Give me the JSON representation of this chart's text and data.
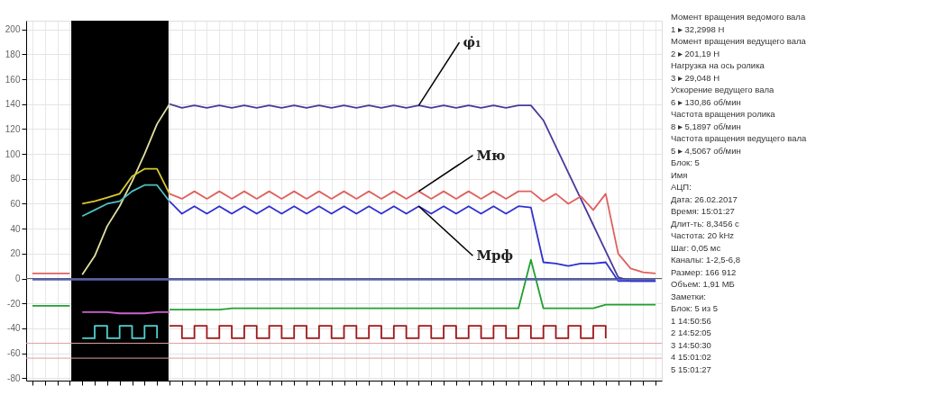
{
  "chart_data": {
    "type": "line",
    "ylim": [
      -82,
      207
    ],
    "yticks": [
      200,
      180,
      160,
      140,
      120,
      100,
      80,
      60,
      40,
      20,
      0,
      -20,
      -40,
      -60,
      -80
    ],
    "categories": [
      null,
      null,
      null,
      null,
      null,
      null,
      null,
      null,
      null,
      null,
      null,
      null,
      null,
      null,
      null,
      null,
      null,
      null,
      null,
      null,
      null,
      null,
      null,
      null,
      null,
      null,
      null,
      null,
      null,
      null,
      null,
      null,
      null,
      null,
      null,
      null,
      null,
      null,
      null,
      null,
      null,
      null,
      null,
      null,
      null,
      null,
      null,
      null,
      null,
      null,
      null
    ],
    "grid": true,
    "line_style": "solid",
    "marker": "none",
    "ref_lines": [
      {
        "axis": "y",
        "value": 0,
        "color": "#606060"
      },
      {
        "axis": "y",
        "value": -52,
        "color": "#e0a0a0"
      },
      {
        "axis": "y",
        "value": -64,
        "color": "#e0a0a0"
      }
    ],
    "series": [
      {
        "name": "φ̇₁",
        "color": "#4a3a9a",
        "values": [
          null,
          null,
          null,
          null,
          null,
          null,
          null,
          null,
          null,
          null,
          null,
          140,
          137,
          139,
          137,
          139,
          137,
          139,
          137,
          139,
          137,
          139,
          137,
          139,
          137,
          139,
          137,
          139,
          137,
          139,
          137,
          139,
          137,
          139,
          137,
          139,
          137,
          139,
          137,
          139,
          139,
          127,
          106,
          85,
          64,
          43,
          22,
          1,
          -2,
          -2,
          -2
        ]
      },
      {
        "name": "Mю",
        "color": "#e06060",
        "values": [
          null,
          null,
          null,
          null,
          null,
          null,
          null,
          null,
          null,
          null,
          null,
          68,
          64,
          70,
          64,
          70,
          64,
          70,
          64,
          70,
          64,
          70,
          64,
          70,
          64,
          70,
          64,
          70,
          64,
          70,
          64,
          70,
          64,
          70,
          64,
          70,
          64,
          70,
          64,
          70,
          70,
          62,
          68,
          60,
          66,
          55,
          68,
          20,
          8,
          5,
          4
        ]
      },
      {
        "name": "Mрф",
        "color": "#3030d0",
        "values": [
          null,
          null,
          null,
          null,
          null,
          null,
          null,
          null,
          null,
          null,
          null,
          62,
          52,
          58,
          52,
          58,
          52,
          58,
          52,
          58,
          52,
          58,
          52,
          58,
          52,
          58,
          52,
          58,
          52,
          58,
          52,
          58,
          52,
          58,
          52,
          58,
          52,
          58,
          52,
          58,
          57,
          13,
          12,
          10,
          12,
          12,
          13,
          -2,
          -2,
          -2,
          -2
        ]
      },
      {
        "color": "#20a030",
        "values": [
          -22,
          -22,
          -22,
          -22,
          null,
          null,
          null,
          null,
          null,
          null,
          null,
          -25,
          -25,
          -25,
          -25,
          -25,
          -24,
          -24,
          -24,
          -24,
          -24,
          -24,
          -24,
          -24,
          -24,
          -24,
          -24,
          -24,
          -24,
          -24,
          -24,
          -24,
          -24,
          -24,
          -24,
          -24,
          -24,
          -24,
          -24,
          -24,
          15,
          -24,
          -24,
          -24,
          -24,
          -24,
          -21,
          -21,
          -21,
          -21,
          -21
        ]
      },
      {
        "color": "#5060c8",
        "values": [
          -1,
          -1,
          -1,
          -1,
          -1,
          -1,
          -1,
          -1,
          -1,
          -1,
          -1,
          -1,
          -1,
          -1,
          -1,
          -1,
          -1,
          -1,
          -1,
          -1,
          -1,
          -1,
          -1,
          -1,
          -1,
          -1,
          -1,
          -1,
          -1,
          -1,
          -1,
          -1,
          -1,
          -1,
          -1,
          -1,
          -1,
          -1,
          -1,
          -1,
          -1,
          -1,
          -1,
          -1,
          -1,
          -1,
          -1,
          -1,
          -1,
          -1,
          -1
        ]
      },
      {
        "color": "#a01818",
        "type": "step",
        "values": [
          null,
          null,
          null,
          null,
          null,
          null,
          null,
          null,
          null,
          null,
          null,
          -38,
          -48,
          -38,
          -48,
          -38,
          -48,
          -38,
          -48,
          -38,
          -48,
          -38,
          -48,
          -38,
          -48,
          -38,
          -48,
          -38,
          -48,
          -38,
          -48,
          -38,
          -48,
          -38,
          -48,
          -38,
          -48,
          -38,
          -48,
          -38,
          -48,
          -38,
          -48,
          -38,
          -48,
          -38,
          -48,
          null,
          null,
          null,
          null
        ]
      },
      {
        "color": "#e06060",
        "values": [
          4,
          4,
          4,
          4,
          null,
          null,
          null,
          null,
          null,
          null,
          null,
          null,
          null,
          null,
          null,
          null,
          null,
          null,
          null,
          null,
          null,
          null,
          null,
          null,
          null,
          null,
          null,
          null,
          null,
          null,
          null,
          null,
          null,
          null,
          null,
          null,
          null,
          null,
          null,
          null,
          null,
          null,
          null,
          null,
          null,
          null,
          null,
          null,
          null,
          null,
          null
        ]
      },
      {
        "color": "#e0e0a0",
        "values": [
          null,
          null,
          null,
          null,
          3,
          18,
          42,
          58,
          78,
          100,
          124,
          140,
          null,
          null,
          null,
          null,
          null,
          null,
          null,
          null,
          null,
          null,
          null,
          null,
          null,
          null,
          null,
          null,
          null,
          null,
          null,
          null,
          null,
          null,
          null,
          null,
          null,
          null,
          null,
          null,
          null,
          null,
          null,
          null,
          null,
          null,
          null,
          null,
          null,
          null,
          null
        ]
      },
      {
        "color": "#d8c830",
        "values": [
          null,
          null,
          null,
          null,
          60,
          62,
          65,
          68,
          82,
          88,
          88,
          68,
          null,
          null,
          null,
          null,
          null,
          null,
          null,
          null,
          null,
          null,
          null,
          null,
          null,
          null,
          null,
          null,
          null,
          null,
          null,
          null,
          null,
          null,
          null,
          null,
          null,
          null,
          null,
          null,
          null,
          null,
          null,
          null,
          null,
          null,
          null,
          null,
          null,
          null,
          null
        ]
      },
      {
        "color": "#50c0c0",
        "values": [
          null,
          null,
          null,
          null,
          50,
          55,
          60,
          62,
          70,
          75,
          75,
          62,
          null,
          null,
          null,
          null,
          null,
          null,
          null,
          null,
          null,
          null,
          null,
          null,
          null,
          null,
          null,
          null,
          null,
          null,
          null,
          null,
          null,
          null,
          null,
          null,
          null,
          null,
          null,
          null,
          null,
          null,
          null,
          null,
          null,
          null,
          null,
          null,
          null,
          null,
          null
        ]
      },
      {
        "color": "#d060d0",
        "values": [
          null,
          null,
          null,
          null,
          -27,
          -27,
          -27,
          -28,
          -28,
          -28,
          -27,
          -27,
          null,
          null,
          null,
          null,
          null,
          null,
          null,
          null,
          null,
          null,
          null,
          null,
          null,
          null,
          null,
          null,
          null,
          null,
          null,
          null,
          null,
          null,
          null,
          null,
          null,
          null,
          null,
          null,
          null,
          null,
          null,
          null,
          null,
          null,
          null,
          null,
          null,
          null,
          null
        ]
      },
      {
        "color": "#50d0d0",
        "type": "step",
        "values": [
          null,
          null,
          null,
          null,
          -48,
          -38,
          -48,
          -38,
          -48,
          -38,
          -48,
          null,
          null,
          null,
          null,
          null,
          null,
          null,
          null,
          null,
          null,
          null,
          null,
          null,
          null,
          null,
          null,
          null,
          null,
          null,
          null,
          null,
          null,
          null,
          null,
          null,
          null,
          null,
          null,
          null,
          null,
          null,
          null,
          null,
          null,
          null,
          null,
          null,
          null,
          null,
          null
        ]
      }
    ],
    "annotations": [
      "Момент вращения ведомого вала",
      "1 ▸ 32,2998 Н",
      "Момент вращения ведущего вала",
      "2 ▸ 201,19 Н",
      "Нагрузка на ось ролика",
      "3 ▸ 29,048 Н",
      "Ускорение ведущего вала",
      "6 ▸ 130,86 об/мин",
      "Частота вращения ролика",
      "8 ▸ 5,1897 об/мин",
      "Частота вращения ведущего вала",
      "5 ▸ 4,5067 об/мин",
      "Блок: 5",
      "Имя",
      "АЦП:",
      "Дата: 26.02.2017",
      "Время: 15:01:27",
      "Длит-ть: 8,3456 с",
      "Частота: 20 kHz",
      "Шаг: 0,05 мс",
      "Каналы: 1-2,5-6,8",
      "Размер: 166 912",
      "Объем: 1,91 МБ",
      "Заметки:",
      "Блок: 5 из 5",
      "1  14:50:56",
      "2  14:52:05",
      "3  14:50:30",
      "4  15:01:02",
      "5  15:01:27"
    ]
  }
}
